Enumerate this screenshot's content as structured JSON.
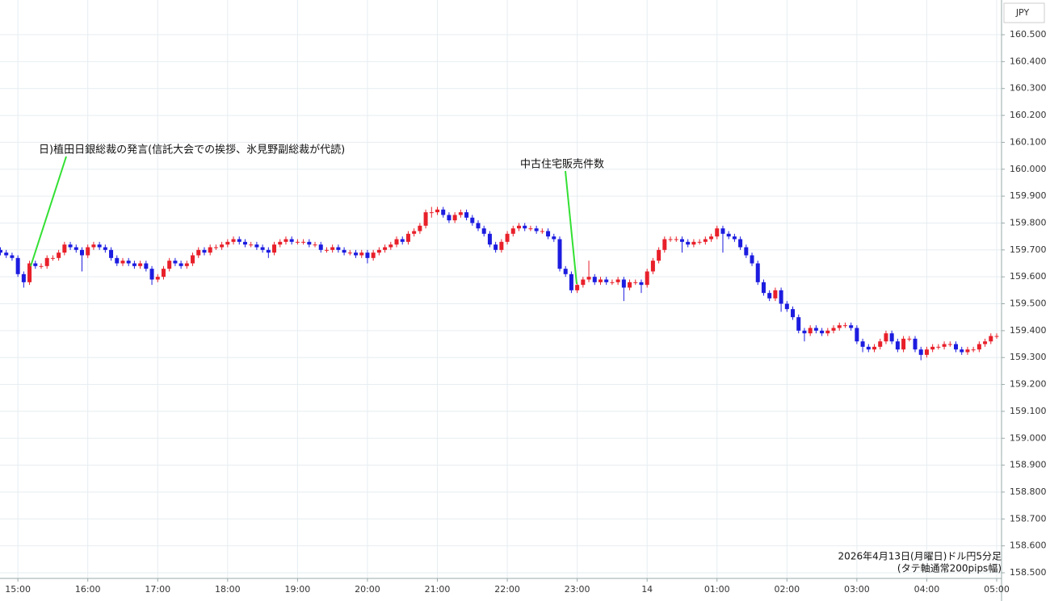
{
  "chart_data": {
    "type": "candlestick",
    "currency": "JPY",
    "footnote": [
      "2026年4月13日(月曜日)ドル円5分足",
      "(タテ軸通常200pips幅)"
    ],
    "annotations": [
      {
        "text": "日)植田日銀総裁の発言(信託大会での挨拶、氷見野副総裁が代読)"
      },
      {
        "text": "中古住宅販売件数"
      }
    ],
    "up_color": "#e8202a",
    "down_color": "#1c1ce0",
    "grid": true,
    "ylim": [
      158.479,
      160.629
    ],
    "yticks": [
      {
        "value": 158.5,
        "label": "158.500"
      },
      {
        "value": 158.6,
        "label": "158.600"
      },
      {
        "value": 158.7,
        "label": "158.700"
      },
      {
        "value": 158.8,
        "label": "158.800"
      },
      {
        "value": 158.9,
        "label": "158.900"
      },
      {
        "value": 159.0,
        "label": "159.000"
      },
      {
        "value": 159.1,
        "label": "159.100"
      },
      {
        "value": 159.2,
        "label": "159.200"
      },
      {
        "value": 159.3,
        "label": "159.300"
      },
      {
        "value": 159.4,
        "label": "159.400"
      },
      {
        "value": 159.5,
        "label": "159.500"
      },
      {
        "value": 159.6,
        "label": "159.600"
      },
      {
        "value": 159.7,
        "label": "159.700"
      },
      {
        "value": 159.8,
        "label": "159.800"
      },
      {
        "value": 159.9,
        "label": "159.900"
      },
      {
        "value": 160.0,
        "label": "160.000"
      },
      {
        "value": 160.1,
        "label": "160.100"
      },
      {
        "value": 160.2,
        "label": "160.200"
      },
      {
        "value": 160.3,
        "label": "160.300"
      },
      {
        "value": 160.4,
        "label": "160.400"
      },
      {
        "value": 160.5,
        "label": "160.500"
      }
    ],
    "xticks": [
      "15:00",
      "16:00",
      "17:00",
      "18:00",
      "19:00",
      "20:00",
      "21:00",
      "22:00",
      "23:00",
      {
        "value": "00:00",
        "label": "14"
      },
      "01:00",
      "02:00",
      "03:00",
      "04:00",
      "05:00"
    ],
    "x": [
      "14:45",
      "14:50",
      "14:55",
      "15:00",
      "15:05",
      "15:10",
      "15:15",
      "15:20",
      "15:25",
      "15:30",
      "15:35",
      "15:40",
      "15:45",
      "15:50",
      "15:55",
      "16:00",
      "16:05",
      "16:10",
      "16:15",
      "16:20",
      "16:25",
      "16:30",
      "16:35",
      "16:40",
      "16:45",
      "16:50",
      "16:55",
      "17:00",
      "17:05",
      "17:10",
      "17:15",
      "17:20",
      "17:25",
      "17:30",
      "17:35",
      "17:40",
      "17:45",
      "17:50",
      "17:55",
      "18:00",
      "18:05",
      "18:10",
      "18:15",
      "18:20",
      "18:25",
      "18:30",
      "18:35",
      "18:40",
      "18:45",
      "18:50",
      "18:55",
      "19:00",
      "19:05",
      "19:10",
      "19:15",
      "19:20",
      "19:25",
      "19:30",
      "19:35",
      "19:40",
      "19:45",
      "19:50",
      "19:55",
      "20:00",
      "20:05",
      "20:10",
      "20:15",
      "20:20",
      "20:25",
      "20:30",
      "20:35",
      "20:40",
      "20:45",
      "20:50",
      "20:55",
      "21:00",
      "21:05",
      "21:10",
      "21:15",
      "21:20",
      "21:25",
      "21:30",
      "21:35",
      "21:40",
      "21:45",
      "21:50",
      "21:55",
      "22:00",
      "22:05",
      "22:10",
      "22:15",
      "22:20",
      "22:25",
      "22:30",
      "22:35",
      "22:40",
      "22:45",
      "22:50",
      "22:55",
      "23:00",
      "23:05",
      "23:10",
      "23:15",
      "23:20",
      "23:25",
      "23:30",
      "23:35",
      "23:40",
      "23:45",
      "23:50",
      "23:55",
      "00:00",
      "00:05",
      "00:10",
      "00:15",
      "00:20",
      "00:25",
      "00:30",
      "00:35",
      "00:40",
      "00:45",
      "00:50",
      "00:55",
      "01:00",
      "01:05",
      "01:10",
      "01:15",
      "01:20",
      "01:25",
      "01:30",
      "01:35",
      "01:40",
      "01:45",
      "01:50",
      "01:55",
      "02:00",
      "02:05",
      "02:10",
      "02:15",
      "02:20",
      "02:25",
      "02:30",
      "02:35",
      "02:40",
      "02:45",
      "02:50",
      "02:55",
      "03:00",
      "03:05",
      "03:10",
      "03:15",
      "03:20",
      "03:25",
      "03:30",
      "03:35",
      "03:40",
      "03:45",
      "03:50",
      "03:55",
      "04:00",
      "04:05",
      "04:10",
      "04:15",
      "04:20",
      "04:25",
      "04:30",
      "04:35",
      "04:40",
      "04:45",
      "04:50",
      "04:55",
      "05:00"
    ],
    "open": [
      159.7,
      159.69,
      159.68,
      159.67,
      159.61,
      159.58,
      159.65,
      159.64,
      159.64,
      159.67,
      159.67,
      159.69,
      159.72,
      159.71,
      159.7,
      159.68,
      159.71,
      159.72,
      159.71,
      159.7,
      159.67,
      159.65,
      159.66,
      159.65,
      159.64,
      159.65,
      159.63,
      159.59,
      159.6,
      159.63,
      159.66,
      159.65,
      159.64,
      159.65,
      159.68,
      159.7,
      159.69,
      159.71,
      159.71,
      159.72,
      159.73,
      159.74,
      159.73,
      159.72,
      159.72,
      159.71,
      159.7,
      159.69,
      159.72,
      159.73,
      159.74,
      159.73,
      159.73,
      159.73,
      159.72,
      159.72,
      159.7,
      159.7,
      159.71,
      159.7,
      159.69,
      159.69,
      159.68,
      159.69,
      159.67,
      159.69,
      159.7,
      159.71,
      159.72,
      159.74,
      159.73,
      159.76,
      159.77,
      159.79,
      159.84,
      159.84,
      159.85,
      159.83,
      159.81,
      159.83,
      159.84,
      159.82,
      159.8,
      159.78,
      159.76,
      159.72,
      159.7,
      159.73,
      159.76,
      159.78,
      159.79,
      159.78,
      159.78,
      159.77,
      159.77,
      159.75,
      159.74,
      159.63,
      159.61,
      159.55,
      159.57,
      159.59,
      159.6,
      159.58,
      159.59,
      159.58,
      159.58,
      159.59,
      159.56,
      159.58,
      159.58,
      159.57,
      159.62,
      159.66,
      159.7,
      159.74,
      159.74,
      159.74,
      159.73,
      159.72,
      159.73,
      159.73,
      159.74,
      159.75,
      159.78,
      159.76,
      159.75,
      159.74,
      159.71,
      159.68,
      159.65,
      159.58,
      159.54,
      159.52,
      159.55,
      159.5,
      159.48,
      159.45,
      159.4,
      159.39,
      159.41,
      159.4,
      159.39,
      159.4,
      159.41,
      159.42,
      159.42,
      159.41,
      159.36,
      159.34,
      159.33,
      159.34,
      159.36,
      159.39,
      159.36,
      159.33,
      159.37,
      159.37,
      159.33,
      159.31,
      159.33,
      159.34,
      159.34,
      159.35,
      159.35,
      159.33,
      159.32,
      159.33,
      159.33,
      159.35,
      159.36,
      159.38
    ],
    "high": [
      159.71,
      159.7,
      159.69,
      159.68,
      159.62,
      159.66,
      159.66,
      159.65,
      159.68,
      159.68,
      159.7,
      159.73,
      159.73,
      159.72,
      159.71,
      159.72,
      159.73,
      159.73,
      159.72,
      159.71,
      159.68,
      159.67,
      159.67,
      159.66,
      159.66,
      159.66,
      159.64,
      159.61,
      159.64,
      159.67,
      159.67,
      159.66,
      159.66,
      159.69,
      159.71,
      159.71,
      159.72,
      159.72,
      159.73,
      159.74,
      159.75,
      159.75,
      159.74,
      159.73,
      159.73,
      159.72,
      159.71,
      159.73,
      159.74,
      159.75,
      159.75,
      159.74,
      159.74,
      159.74,
      159.73,
      159.73,
      159.71,
      159.72,
      159.72,
      159.71,
      159.7,
      159.7,
      159.7,
      159.7,
      159.7,
      159.71,
      159.72,
      159.73,
      159.75,
      159.75,
      159.77,
      159.78,
      159.8,
      159.85,
      159.86,
      159.86,
      159.86,
      159.84,
      159.84,
      159.85,
      159.85,
      159.83,
      159.81,
      159.79,
      159.77,
      159.73,
      159.74,
      159.77,
      159.79,
      159.8,
      159.8,
      159.79,
      159.79,
      159.78,
      159.78,
      159.76,
      159.75,
      159.64,
      159.62,
      159.58,
      159.6,
      159.66,
      159.61,
      159.6,
      159.6,
      159.59,
      159.6,
      159.6,
      159.59,
      159.59,
      159.59,
      159.63,
      159.67,
      159.71,
      159.75,
      159.75,
      159.75,
      159.75,
      159.74,
      159.74,
      159.74,
      159.75,
      159.76,
      159.79,
      159.79,
      159.77,
      159.76,
      159.75,
      159.72,
      159.69,
      159.66,
      159.59,
      159.55,
      159.56,
      159.56,
      159.51,
      159.49,
      159.46,
      159.41,
      159.42,
      159.42,
      159.41,
      159.41,
      159.42,
      159.43,
      159.43,
      159.43,
      159.42,
      159.37,
      159.35,
      159.35,
      159.37,
      159.4,
      159.4,
      159.37,
      159.38,
      159.38,
      159.38,
      159.34,
      159.34,
      159.35,
      159.35,
      159.36,
      159.36,
      159.36,
      159.34,
      159.34,
      159.34,
      159.36,
      159.37,
      159.39,
      159.39
    ],
    "low": [
      159.68,
      159.67,
      159.66,
      159.6,
      159.56,
      159.57,
      159.63,
      159.63,
      159.63,
      159.66,
      159.66,
      159.68,
      159.7,
      159.69,
      159.62,
      159.67,
      159.7,
      159.7,
      159.69,
      159.66,
      159.64,
      159.64,
      159.64,
      159.63,
      159.63,
      159.62,
      159.57,
      159.58,
      159.59,
      159.62,
      159.64,
      159.63,
      159.63,
      159.64,
      159.67,
      159.68,
      159.68,
      159.7,
      159.7,
      159.71,
      159.72,
      159.72,
      159.71,
      159.71,
      159.7,
      159.69,
      159.67,
      159.68,
      159.71,
      159.72,
      159.72,
      159.72,
      159.72,
      159.71,
      159.71,
      159.69,
      159.69,
      159.69,
      159.69,
      159.68,
      159.68,
      159.67,
      159.67,
      159.65,
      159.66,
      159.68,
      159.69,
      159.7,
      159.71,
      159.72,
      159.72,
      159.75,
      159.76,
      159.78,
      159.82,
      159.83,
      159.82,
      159.8,
      159.8,
      159.82,
      159.81,
      159.79,
      159.77,
      159.75,
      159.71,
      159.69,
      159.69,
      159.72,
      159.75,
      159.77,
      159.77,
      159.77,
      159.76,
      159.76,
      159.74,
      159.73,
      159.62,
      159.6,
      159.54,
      159.54,
      159.56,
      159.58,
      159.57,
      159.57,
      159.57,
      159.57,
      159.57,
      159.51,
      159.55,
      159.57,
      159.54,
      159.56,
      159.61,
      159.65,
      159.69,
      159.73,
      159.73,
      159.69,
      159.71,
      159.71,
      159.72,
      159.72,
      159.73,
      159.74,
      159.69,
      159.74,
      159.73,
      159.7,
      159.67,
      159.64,
      159.57,
      159.53,
      159.51,
      159.51,
      159.47,
      159.47,
      159.44,
      159.39,
      159.36,
      159.38,
      159.39,
      159.38,
      159.38,
      159.39,
      159.4,
      159.41,
      159.4,
      159.35,
      159.32,
      159.32,
      159.32,
      159.33,
      159.35,
      159.35,
      159.32,
      159.32,
      159.36,
      159.32,
      159.29,
      159.3,
      159.32,
      159.33,
      159.33,
      159.34,
      159.32,
      159.31,
      159.31,
      159.32,
      159.32,
      159.34,
      159.35,
      159.37
    ],
    "close": [
      159.69,
      159.68,
      159.67,
      159.61,
      159.58,
      159.65,
      159.64,
      159.64,
      159.67,
      159.67,
      159.69,
      159.72,
      159.71,
      159.7,
      159.68,
      159.71,
      159.72,
      159.71,
      159.7,
      159.67,
      159.65,
      159.66,
      159.65,
      159.64,
      159.65,
      159.63,
      159.59,
      159.6,
      159.63,
      159.66,
      159.65,
      159.64,
      159.65,
      159.68,
      159.7,
      159.69,
      159.71,
      159.71,
      159.72,
      159.73,
      159.74,
      159.73,
      159.72,
      159.72,
      159.71,
      159.7,
      159.69,
      159.72,
      159.73,
      159.74,
      159.73,
      159.73,
      159.73,
      159.72,
      159.72,
      159.7,
      159.7,
      159.71,
      159.7,
      159.69,
      159.69,
      159.68,
      159.69,
      159.67,
      159.69,
      159.7,
      159.71,
      159.72,
      159.74,
      159.73,
      159.76,
      159.77,
      159.79,
      159.84,
      159.84,
      159.85,
      159.83,
      159.81,
      159.83,
      159.84,
      159.82,
      159.8,
      159.78,
      159.76,
      159.72,
      159.7,
      159.73,
      159.76,
      159.78,
      159.79,
      159.78,
      159.78,
      159.77,
      159.77,
      159.75,
      159.74,
      159.63,
      159.61,
      159.55,
      159.57,
      159.59,
      159.6,
      159.58,
      159.59,
      159.58,
      159.58,
      159.59,
      159.56,
      159.58,
      159.58,
      159.57,
      159.62,
      159.66,
      159.7,
      159.74,
      159.74,
      159.74,
      159.73,
      159.72,
      159.73,
      159.73,
      159.74,
      159.75,
      159.78,
      159.76,
      159.75,
      159.74,
      159.71,
      159.68,
      159.65,
      159.58,
      159.54,
      159.52,
      159.55,
      159.5,
      159.48,
      159.45,
      159.4,
      159.39,
      159.41,
      159.4,
      159.39,
      159.4,
      159.41,
      159.42,
      159.42,
      159.41,
      159.36,
      159.34,
      159.33,
      159.34,
      159.36,
      159.39,
      159.36,
      159.33,
      159.37,
      159.37,
      159.33,
      159.31,
      159.33,
      159.34,
      159.34,
      159.35,
      159.35,
      159.33,
      159.32,
      159.33,
      159.33,
      159.35,
      159.36,
      159.38,
      159.38
    ]
  }
}
